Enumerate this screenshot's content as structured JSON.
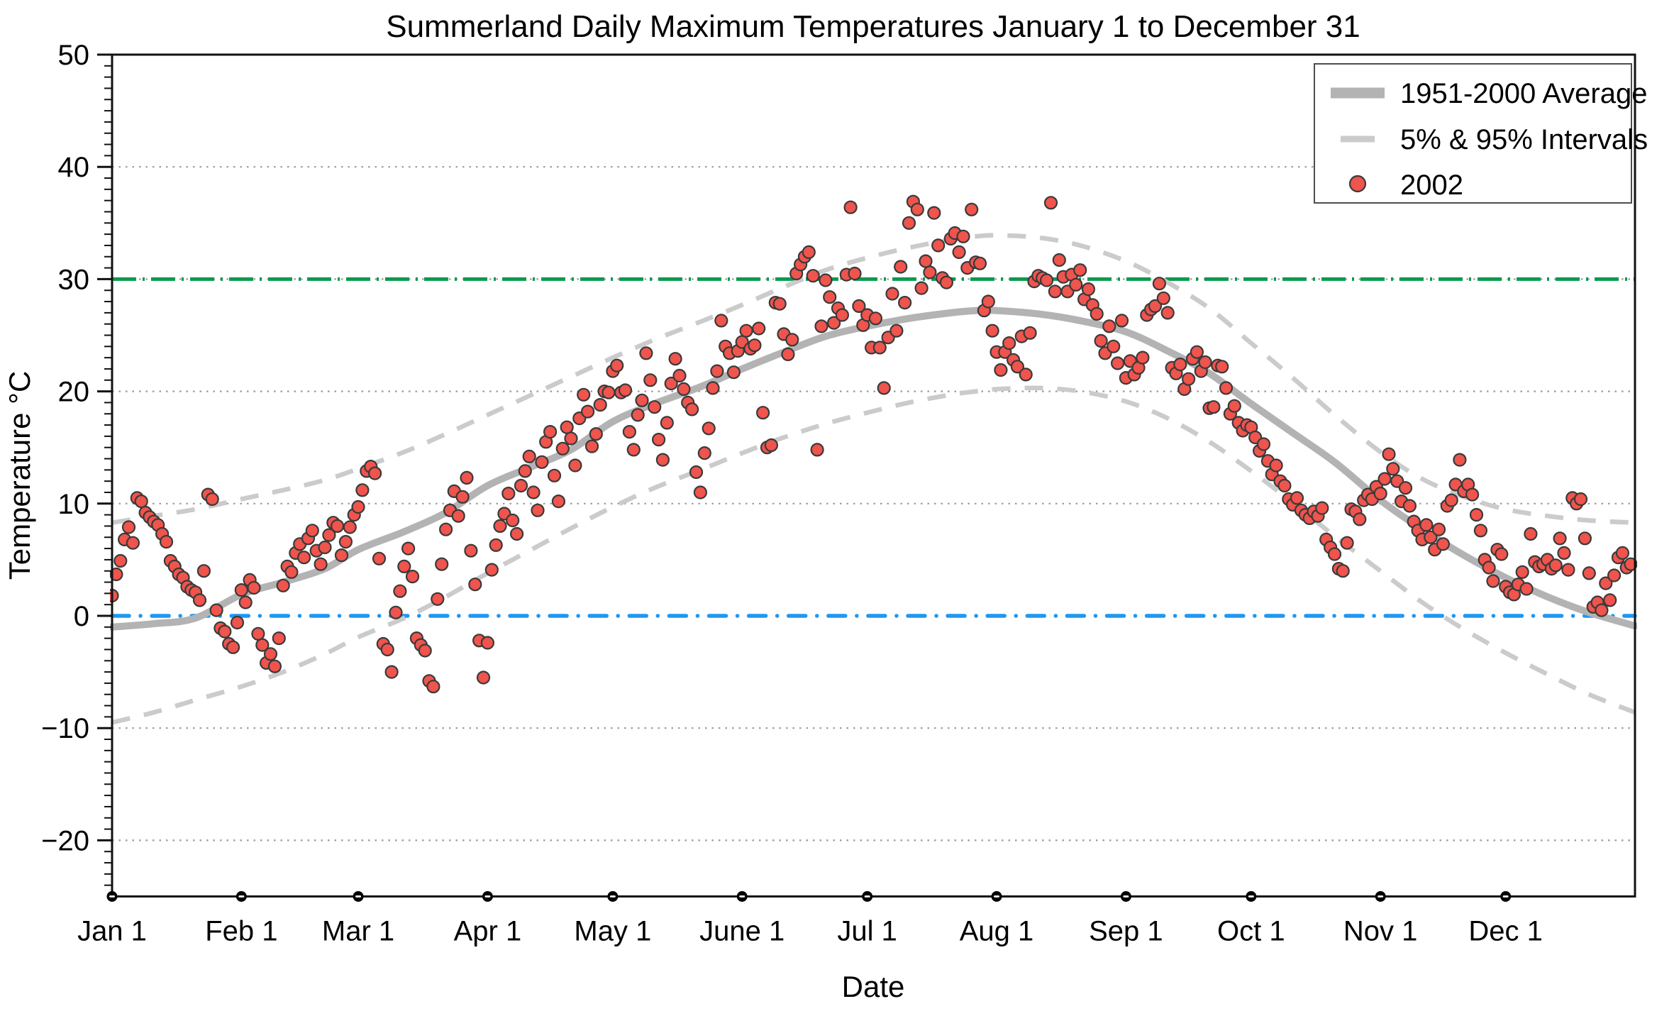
{
  "chart_data": {
    "type": "scatter",
    "title": "Summerland Daily Maximum Temperatures January 1 to December 31",
    "xlabel": "Date",
    "ylabel": "Temperature °C",
    "ylim": [
      -25,
      50
    ],
    "xlim_days": [
      0,
      365
    ],
    "yticks": [
      50,
      40,
      30,
      20,
      10,
      0,
      -10,
      -20
    ],
    "minor_ytick_step": 1,
    "gridline_values": [
      40,
      30,
      20,
      10,
      -10,
      -20
    ],
    "grid_style": "dotted",
    "xticks": [
      {
        "label": "Jan 1",
        "day": 0
      },
      {
        "label": "Feb 1",
        "day": 31
      },
      {
        "label": "Mar 1",
        "day": 59
      },
      {
        "label": "Apr 1",
        "day": 90
      },
      {
        "label": "May 1",
        "day": 120
      },
      {
        "label": "June 1",
        "day": 151
      },
      {
        "label": "Jul 1",
        "day": 181
      },
      {
        "label": "Aug 1",
        "day": 212
      },
      {
        "label": "Sep 1",
        "day": 243
      },
      {
        "label": "Oct 1",
        "day": 273
      },
      {
        "label": "Nov 1",
        "day": 304
      },
      {
        "label": "Dec 1",
        "day": 334
      }
    ],
    "reference_lines": [
      {
        "name": "threshold-30C",
        "value": 30,
        "color": "#079a4e",
        "style": "dash-dot"
      },
      {
        "name": "freezing-0C",
        "value": 0,
        "color": "#1f97f2",
        "style": "dash-dot-round"
      }
    ],
    "legend": [
      {
        "label": "1951-2000 Average",
        "swatch": "thick-gray-line"
      },
      {
        "label": "5% & 95% Intervals",
        "swatch": "dashed-gray-line"
      },
      {
        "label": "2002",
        "swatch": "red-dot"
      }
    ],
    "legend_position": "upper-right",
    "colors": {
      "scatter_fill": "#ef544d",
      "scatter_stroke": "#3a3a3a",
      "average_line": "#b3b3b3",
      "interval_line": "#cbcbcb",
      "gridline": "#9a9a9a",
      "axis": "#111111"
    },
    "series": {
      "sample_days": [
        0,
        10,
        20,
        31,
        41,
        51,
        59,
        70,
        80,
        90,
        100,
        110,
        120,
        130,
        141,
        151,
        161,
        171,
        181,
        191,
        201,
        207,
        212,
        222,
        232,
        243,
        253,
        263,
        273,
        283,
        293,
        304,
        314,
        324,
        334,
        344,
        354,
        365
      ],
      "average_1951_2000": [
        -1.0,
        -0.7,
        -0.2,
        1.9,
        3.0,
        4.2,
        5.9,
        7.5,
        9.2,
        11.6,
        13.2,
        14.8,
        17.3,
        18.9,
        20.4,
        22.0,
        23.5,
        24.9,
        25.8,
        26.5,
        27.0,
        27.2,
        27.2,
        26.9,
        26.3,
        25.3,
        23.6,
        21.6,
        18.9,
        16.3,
        13.7,
        10.3,
        7.7,
        5.4,
        3.4,
        1.7,
        0.3,
        -0.9
      ],
      "p95_interval": [
        8.3,
        8.9,
        9.5,
        10.4,
        11.2,
        12.1,
        13.1,
        14.6,
        16.2,
        17.9,
        19.6,
        21.3,
        23.0,
        24.6,
        26.2,
        27.7,
        29.3,
        30.8,
        31.9,
        32.8,
        33.5,
        33.8,
        33.9,
        33.7,
        33.0,
        31.6,
        29.7,
        27.4,
        24.3,
        21.2,
        17.9,
        14.6,
        12.2,
        10.6,
        9.5,
        8.9,
        8.5,
        8.3
      ],
      "p05_interval": [
        -9.5,
        -8.6,
        -7.5,
        -6.3,
        -5.0,
        -3.4,
        -1.9,
        -0.2,
        1.7,
        3.8,
        5.8,
        7.8,
        9.7,
        11.4,
        13.0,
        14.5,
        15.9,
        17.1,
        18.1,
        19.0,
        19.7,
        20.0,
        20.2,
        20.3,
        20.0,
        19.1,
        17.6,
        15.5,
        12.9,
        10.1,
        7.1,
        4.0,
        1.2,
        -1.2,
        -3.3,
        -5.2,
        -7.0,
        -8.6
      ],
      "temps_2002_daily": [
        1.8,
        3.7,
        4.9,
        6.8,
        7.9,
        6.5,
        10.5,
        10.2,
        9.2,
        8.8,
        8.4,
        8.1,
        7.3,
        6.6,
        4.9,
        4.4,
        3.7,
        3.4,
        2.6,
        2.3,
        2.1,
        1.4,
        4.0,
        10.8,
        10.4,
        0.5,
        -1.1,
        -1.4,
        -2.5,
        -2.8,
        -0.6,
        2.3,
        1.2,
        3.2,
        2.5,
        -1.6,
        -2.6,
        -4.2,
        -3.4,
        -4.5,
        -2.0,
        2.7,
        4.4,
        3.9,
        5.6,
        6.4,
        5.2,
        6.9,
        7.6,
        5.8,
        4.6,
        6.1,
        7.2,
        8.3,
        8.0,
        5.4,
        6.6,
        7.9,
        9.0,
        9.7,
        11.2,
        12.9,
        13.3,
        12.7,
        5.1,
        -2.5,
        -3.0,
        -5.0,
        0.3,
        2.2,
        4.4,
        6.0,
        3.5,
        -2.0,
        -2.6,
        -3.1,
        -5.8,
        -6.3,
        1.5,
        4.6,
        7.7,
        9.4,
        11.1,
        8.9,
        10.6,
        12.3,
        5.8,
        2.8,
        -2.2,
        -5.5,
        -2.4,
        4.1,
        6.3,
        8.0,
        9.1,
        10.9,
        8.5,
        7.3,
        11.6,
        12.9,
        14.2,
        11.0,
        9.4,
        13.7,
        15.5,
        16.4,
        12.5,
        10.2,
        14.9,
        16.8,
        15.8,
        13.4,
        17.6,
        19.7,
        18.2,
        15.1,
        16.2,
        18.8,
        20.0,
        19.9,
        21.8,
        22.3,
        19.9,
        20.1,
        16.4,
        14.8,
        17.9,
        19.2,
        23.4,
        21.0,
        18.6,
        15.7,
        13.9,
        17.2,
        20.7,
        22.9,
        21.4,
        20.2,
        19.0,
        18.4,
        12.8,
        11.0,
        14.5,
        16.7,
        20.3,
        21.8,
        26.3,
        24.0,
        23.4,
        21.7,
        23.6,
        24.4,
        25.4,
        23.8,
        24.1,
        25.6,
        18.1,
        15.0,
        15.2,
        27.9,
        27.8,
        25.1,
        23.3,
        24.6,
        30.5,
        31.3,
        32.0,
        32.4,
        30.3,
        14.8,
        25.8,
        29.9,
        28.4,
        26.1,
        27.4,
        26.8,
        30.4,
        36.4,
        30.5,
        27.6,
        25.9,
        26.8,
        23.9,
        26.5,
        23.9,
        20.3,
        24.8,
        28.7,
        25.4,
        31.1,
        27.9,
        35.0,
        36.9,
        36.2,
        29.2,
        31.6,
        30.6,
        35.9,
        33.0,
        30.1,
        29.7,
        33.6,
        34.1,
        32.4,
        33.8,
        31.0,
        36.2,
        31.5,
        31.4,
        27.2,
        28.0,
        25.4,
        23.5,
        21.9,
        23.5,
        24.3,
        22.8,
        22.2,
        24.9,
        21.5,
        25.2,
        29.8,
        30.3,
        30.1,
        29.9,
        36.8,
        28.9,
        31.7,
        30.2,
        28.9,
        30.4,
        29.5,
        30.8,
        28.2,
        29.1,
        27.7,
        26.9,
        24.5,
        23.4,
        25.8,
        24.0,
        22.5,
        26.3,
        21.2,
        22.7,
        21.5,
        22.1,
        23.0,
        26.8,
        27.3,
        27.6,
        29.6,
        28.3,
        27.0,
        22.1,
        21.6,
        22.4,
        20.2,
        21.1,
        22.9,
        23.5,
        21.8,
        22.6,
        18.5,
        18.6,
        22.3,
        22.2,
        20.3,
        18.0,
        18.7,
        17.2,
        16.5,
        17.0,
        16.8,
        15.9,
        14.7,
        15.3,
        13.8,
        12.6,
        13.4,
        12.0,
        11.6,
        10.4,
        9.9,
        10.5,
        9.4,
        9.0,
        8.7,
        9.3,
        8.9,
        9.6,
        6.8,
        6.1,
        5.5,
        4.2,
        4.0,
        6.5,
        9.5,
        9.3,
        8.6,
        10.3,
        10.8,
        10.4,
        11.5,
        10.9,
        12.2,
        14.4,
        13.1,
        12.0,
        10.2,
        11.4,
        9.8,
        8.4,
        7.6,
        6.8,
        8.1,
        7.0,
        5.9,
        7.7,
        6.4,
        9.8,
        10.3,
        11.7,
        13.9,
        11.1,
        11.7,
        10.8,
        9.0,
        7.6,
        5.0,
        4.3,
        3.1,
        5.9,
        5.5,
        2.6,
        2.1,
        1.9,
        2.8,
        3.9,
        2.4,
        7.3,
        4.8,
        4.4,
        4.6,
        5.0,
        4.2,
        4.5,
        6.9,
        5.6,
        4.1,
        10.5,
        10.0,
        10.4,
        6.9,
        3.8,
        0.8,
        1.2,
        0.5,
        2.9,
        1.4,
        3.6,
        5.2,
        5.6,
        4.3,
        4.6
      ]
    }
  }
}
